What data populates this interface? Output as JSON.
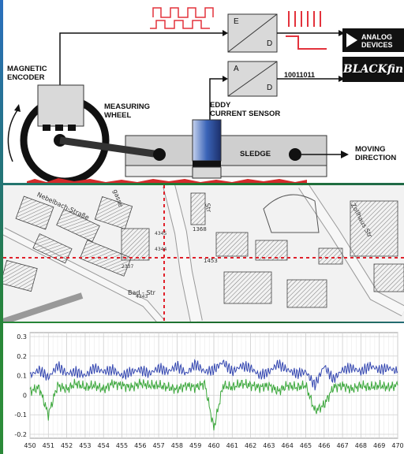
{
  "diagram": {
    "labels": {
      "magnetic_encoder": "MAGNETIC\nENCODER",
      "measuring_wheel": "MEASURING\nWHEEL",
      "eddy_sensor": "EDDY\nCURRENT SENSOR",
      "sledge": "SLEDGE",
      "moving_direction": "MOVING\nDIRECTION",
      "binary": "10011011"
    },
    "converters": [
      {
        "top_char": "E",
        "bottom_char": "D"
      },
      {
        "top_char": "A",
        "bottom_char": "D"
      }
    ],
    "logos": {
      "analog_line1": "ANALOG",
      "analog_line2": "DEVICES",
      "blackfin": "BLACKfin"
    },
    "colors": {
      "signal_red": "#e3323c",
      "sensor_blue": "#3a64b8"
    }
  },
  "map": {
    "street_names": [
      "Nebelbach-Straße",
      "Bad - Str",
      "Zollhaus Str",
      "gasse",
      "Str"
    ],
    "parcel_numbers": [
      "1368",
      "1453",
      "2337",
      "4343",
      "4345",
      "4344"
    ],
    "crosshair_color": "#e0202a"
  },
  "chart_data": {
    "type": "line",
    "x_ticks": [
      450,
      451,
      452,
      453,
      454,
      455,
      456,
      457,
      458,
      459,
      460,
      461,
      462,
      463,
      464,
      465,
      466,
      467,
      468,
      469,
      470
    ],
    "y_ticks": [
      0.3,
      0.2,
      0.1,
      0,
      -0.1,
      -0.2
    ],
    "xlim": [
      450,
      470
    ],
    "ylim": [
      -0.22,
      0.32
    ],
    "grid": true,
    "series": [
      {
        "color": "#3346b0",
        "x": [
          450,
          450.5,
          451,
          451.5,
          452,
          452.5,
          453,
          453.5,
          454,
          454.5,
          455,
          455.5,
          456,
          456.5,
          457,
          457.5,
          458,
          458.5,
          459,
          459.5,
          460,
          460.5,
          461,
          461.5,
          462,
          462.5,
          463,
          463.5,
          464,
          464.5,
          465,
          465.5,
          466,
          466.5,
          467,
          467.5,
          468,
          468.5,
          469,
          469.5,
          470
        ],
        "values": [
          0.1,
          0.13,
          0.09,
          0.15,
          0.11,
          0.12,
          0.1,
          0.14,
          0.12,
          0.13,
          0.1,
          0.12,
          0.13,
          0.11,
          0.14,
          0.12,
          0.15,
          0.11,
          0.16,
          0.12,
          0.13,
          0.17,
          0.12,
          0.15,
          0.14,
          0.1,
          0.12,
          0.16,
          0.13,
          0.11,
          0.12,
          0.05,
          0.15,
          0.08,
          0.13,
          0.14,
          0.12,
          0.15,
          0.13,
          0.14,
          0.12
        ]
      },
      {
        "color": "#3da83d",
        "x": [
          450,
          450.5,
          451,
          451.5,
          452,
          452.5,
          453,
          453.5,
          454,
          454.5,
          455,
          455.5,
          456,
          456.5,
          457,
          457.5,
          458,
          458.5,
          459,
          459.5,
          460,
          460.5,
          461,
          461.5,
          462,
          462.5,
          463,
          463.5,
          464,
          464.5,
          465,
          465.5,
          466,
          466.5,
          467,
          467.5,
          468,
          468.5,
          469,
          469.5,
          470
        ],
        "values": [
          0.02,
          0.04,
          -0.1,
          0.05,
          0.03,
          0.06,
          0.04,
          0.05,
          0.03,
          0.06,
          0.05,
          0.04,
          0.06,
          0.05,
          0.05,
          0.04,
          0.03,
          0.05,
          0.04,
          0.06,
          -0.17,
          0.05,
          0.04,
          0.06,
          0.05,
          0.04,
          0.05,
          0.02,
          0.05,
          0.04,
          0.05,
          -0.08,
          -0.05,
          0.04,
          0.05,
          0.03,
          0.05,
          0.04,
          0.05,
          0.04,
          0.05
        ]
      }
    ]
  }
}
